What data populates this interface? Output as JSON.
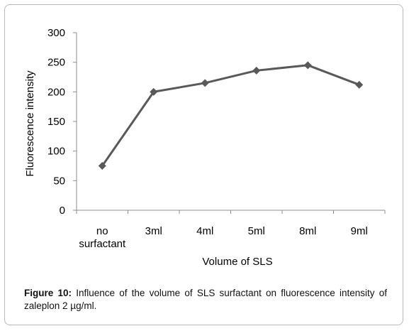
{
  "chart_data": {
    "type": "line",
    "categories": [
      "no surfactant",
      "3ml",
      "4ml",
      "5ml",
      "8ml",
      "9ml"
    ],
    "category_lines": [
      [
        "no",
        "surfactant"
      ],
      [
        "3ml"
      ],
      [
        "4ml"
      ],
      [
        "5ml"
      ],
      [
        "8ml"
      ],
      [
        "9ml"
      ]
    ],
    "values": [
      75,
      200,
      215,
      236,
      245,
      212
    ],
    "xlabel": "Volume of SLS",
    "ylabel": "Fluorescence intensity",
    "ylim": [
      0,
      300
    ],
    "yticks": [
      "0",
      "50",
      "100",
      "150",
      "200",
      "250",
      "300"
    ],
    "grid": false,
    "marker": "diamond",
    "line_color": "#595959"
  },
  "caption": {
    "label": "Figure 10:",
    "text": " Influence of the volume of SLS surfactant on fluorescence intensity of zaleplon 2 µg/ml."
  }
}
